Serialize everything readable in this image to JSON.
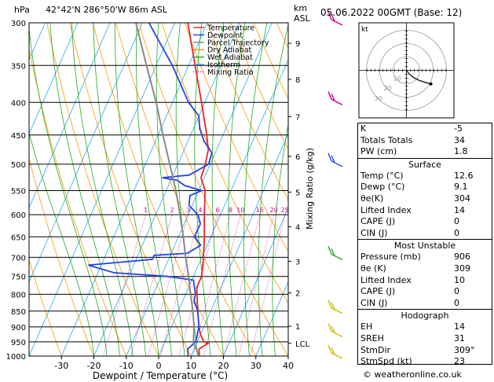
{
  "header": {
    "hpa": "hPa",
    "location": "42°42'N  286°50'W  86m  ASL",
    "km": "km",
    "asl": "ASL",
    "datetime": "05.06.2022  00GMT  (Base: 12)"
  },
  "chart_data": {
    "type": "line",
    "xlabel": "Dewpoint / Temperature (°C)",
    "ylabel_right": "Mixing Ratio (g/kg)",
    "xlim": [
      -40,
      40
    ],
    "pressure_levels": [
      300,
      350,
      400,
      450,
      500,
      550,
      600,
      650,
      700,
      750,
      800,
      850,
      900,
      950,
      1000
    ],
    "x_ticks": [
      -30,
      -20,
      -10,
      0,
      10,
      20,
      30,
      40
    ],
    "km_ticks": [
      {
        "label": "9",
        "p": 323
      },
      {
        "label": "8",
        "p": 368
      },
      {
        "label": "7",
        "p": 421
      },
      {
        "label": "6",
        "p": 486
      },
      {
        "label": "5",
        "p": 553
      },
      {
        "label": "4",
        "p": 627
      },
      {
        "label": "3",
        "p": 710
      },
      {
        "label": "2",
        "p": 796
      },
      {
        "label": "1",
        "p": 898
      },
      {
        "label": "LCL",
        "p": 955
      }
    ],
    "mixing_ratio_labels": [
      "1",
      "2",
      "3",
      "4",
      "6",
      "8",
      "10",
      "15",
      "20",
      "25"
    ],
    "legend": {
      "placement": "top-right",
      "items": [
        {
          "label": "Temperature",
          "color": "#ee2222",
          "style": "solid"
        },
        {
          "label": "Dewpoint",
          "color": "#2244ee",
          "style": "solid"
        },
        {
          "label": "Parcel Trajectory",
          "color": "#888888",
          "style": "solid"
        },
        {
          "label": "Dry Adiabat",
          "color": "#ff9900",
          "style": "solid"
        },
        {
          "label": "Wet Adiabat",
          "color": "#22aa22",
          "style": "solid"
        },
        {
          "label": "Isotherm",
          "color": "#22aaee",
          "style": "solid"
        },
        {
          "label": "Mixing Ratio",
          "color": "#cc0099",
          "style": "dotted"
        }
      ]
    },
    "series": [
      {
        "name": "Temperature",
        "color": "#ee2222",
        "points": [
          [
            1000,
            12.6
          ],
          [
            975,
            11.5
          ],
          [
            955,
            13.5
          ],
          [
            950,
            12
          ],
          [
            925,
            10
          ],
          [
            900,
            8.5
          ],
          [
            850,
            6
          ],
          [
            800,
            3.5
          ],
          [
            780,
            2.5
          ],
          [
            750,
            2.5
          ],
          [
            700,
            0.5
          ],
          [
            650,
            -2
          ],
          [
            600,
            -5
          ],
          [
            550,
            -8
          ],
          [
            525,
            -11
          ],
          [
            500,
            -11.5
          ],
          [
            475,
            -12.5
          ],
          [
            450,
            -15
          ],
          [
            400,
            -21
          ],
          [
            350,
            -28
          ],
          [
            300,
            -36
          ]
        ]
      },
      {
        "name": "Dewpoint",
        "color": "#2244ee",
        "points": [
          [
            1000,
            9.1
          ],
          [
            975,
            8
          ],
          [
            950,
            9.5
          ],
          [
            925,
            9
          ],
          [
            900,
            8.5
          ],
          [
            850,
            6
          ],
          [
            820,
            3.5
          ],
          [
            800,
            3
          ],
          [
            760,
            0.5
          ],
          [
            750,
            -8
          ],
          [
            740,
            -25
          ],
          [
            720,
            -34
          ],
          [
            705,
            -15
          ],
          [
            695,
            -15
          ],
          [
            690,
            -5
          ],
          [
            670,
            -2
          ],
          [
            650,
            -5
          ],
          [
            620,
            -5
          ],
          [
            600,
            -7
          ],
          [
            580,
            -11
          ],
          [
            560,
            -12
          ],
          [
            550,
            -9
          ],
          [
            540,
            -15
          ],
          [
            530,
            -18
          ],
          [
            525,
            -23
          ],
          [
            520,
            -15
          ],
          [
            500,
            -10.5
          ],
          [
            480,
            -11
          ],
          [
            460,
            -15
          ],
          [
            440,
            -18
          ],
          [
            420,
            -20
          ],
          [
            400,
            -25
          ],
          [
            350,
            -35
          ],
          [
            300,
            -48
          ]
        ]
      },
      {
        "name": "Parcel Trajectory",
        "color": "#888888",
        "points": [
          [
            1000,
            12.6
          ],
          [
            955,
            9
          ],
          [
            900,
            7
          ],
          [
            850,
            4.5
          ],
          [
            800,
            1.5
          ],
          [
            750,
            -1.5
          ],
          [
            700,
            -5
          ],
          [
            650,
            -8.5
          ],
          [
            600,
            -12.5
          ],
          [
            550,
            -17
          ],
          [
            500,
            -22.5
          ],
          [
            450,
            -28.5
          ],
          [
            400,
            -35
          ],
          [
            350,
            -43
          ],
          [
            300,
            -52
          ]
        ]
      }
    ],
    "wind_barbs": [
      {
        "p": 300,
        "color": "#cc0099"
      },
      {
        "p": 400,
        "color": "#cc0099"
      },
      {
        "p": 500,
        "color": "#2244ee"
      },
      {
        "p": 700,
        "color": "#22aa22"
      },
      {
        "p": 850,
        "color": "#ccbb00"
      },
      {
        "p": 925,
        "color": "#ccbb00"
      },
      {
        "p": 1000,
        "color": "#ccbb00"
      }
    ],
    "hodograph": {
      "label": "kt",
      "ring_labels": [
        "10",
        "20",
        "30"
      ],
      "points": [
        [
          0,
          0
        ],
        [
          3,
          -4
        ],
        [
          8,
          -8
        ],
        [
          14,
          -11
        ],
        [
          20,
          -13
        ],
        [
          27,
          -15
        ]
      ]
    }
  },
  "indices": {
    "rows": [
      {
        "label": "K",
        "value": "-5"
      },
      {
        "label": "Totals Totals",
        "value": "34"
      },
      {
        "label": "PW (cm)",
        "value": "1.8"
      }
    ]
  },
  "surface": {
    "title": "Surface",
    "rows": [
      {
        "label": "Temp (°C)",
        "value": "12.6"
      },
      {
        "label": "Dewp (°C)",
        "value": "9.1"
      },
      {
        "label": "θe(K)",
        "value": "304"
      },
      {
        "label": "Lifted Index",
        "value": "14"
      },
      {
        "label": "CAPE (J)",
        "value": "0"
      },
      {
        "label": "CIN (J)",
        "value": "0"
      }
    ]
  },
  "most_unstable": {
    "title": "Most Unstable",
    "rows": [
      {
        "label": "Pressure (mb)",
        "value": "906"
      },
      {
        "label": "θe (K)",
        "value": "309"
      },
      {
        "label": "Lifted Index",
        "value": "10"
      },
      {
        "label": "CAPE (J)",
        "value": "0"
      },
      {
        "label": "CIN (J)",
        "value": "0"
      }
    ]
  },
  "hodograph_table": {
    "title": "Hodograph",
    "rows": [
      {
        "label": "EH",
        "value": "14"
      },
      {
        "label": "SREH",
        "value": "31"
      },
      {
        "label": "StmDir",
        "value": "309°"
      },
      {
        "label": "StmSpd (kt)",
        "value": "23"
      }
    ]
  },
  "credit": "© weatheronline.co.uk"
}
